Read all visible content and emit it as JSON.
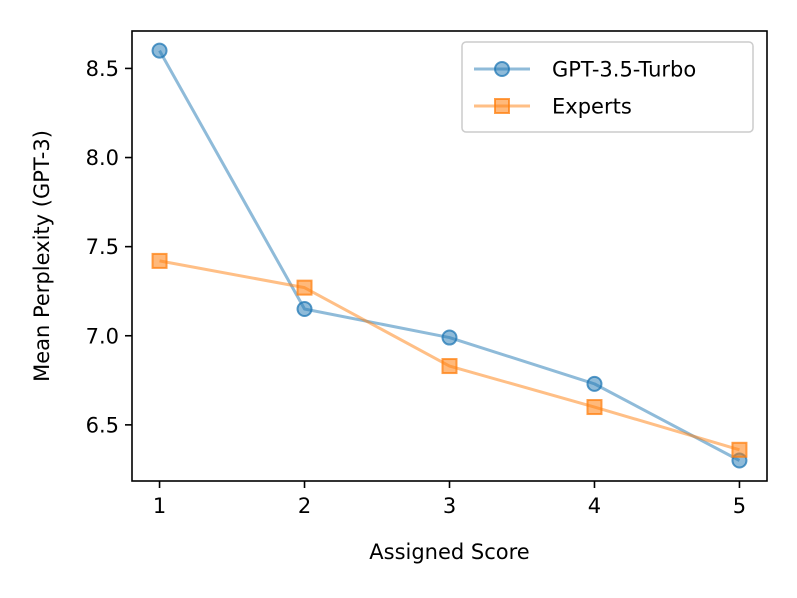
{
  "chart_data": {
    "type": "line",
    "title": "",
    "xlabel": "Assigned Score",
    "ylabel": "Mean Perplexity (GPT-3)",
    "x": [
      1,
      2,
      3,
      4,
      5
    ],
    "xticks": [
      "1",
      "2",
      "3",
      "4",
      "5"
    ],
    "yticks": [
      "6.5",
      "7.0",
      "7.5",
      "8.0",
      "8.5"
    ],
    "ytick_values": [
      6.5,
      7.0,
      7.5,
      8.0,
      8.5
    ],
    "xlim": [
      0.81,
      5.19
    ],
    "ylim": [
      6.185,
      8.71
    ],
    "grid": false,
    "legend_position": "top-right",
    "series": [
      {
        "name": "GPT-3.5-Turbo",
        "values": [
          8.6,
          7.15,
          6.99,
          6.73,
          6.3
        ],
        "color": "#1f77b4",
        "marker": "circle"
      },
      {
        "name": "Experts",
        "values": [
          7.42,
          7.27,
          6.83,
          6.6,
          6.36
        ],
        "color": "#ff7f0e",
        "marker": "square"
      }
    ]
  }
}
